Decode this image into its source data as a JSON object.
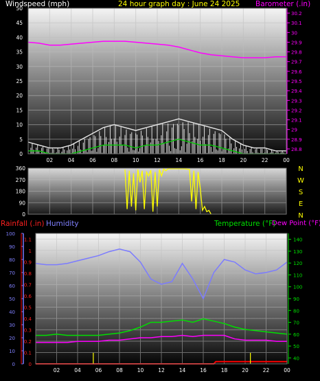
{
  "header": {
    "left": "Windspeed (mph)",
    "center": "24 hour graph day : June 24 2025",
    "right": "Barometer (.in)"
  },
  "colors": {
    "wind": "#ffffff",
    "gust": "#e8e8e8",
    "avg_wind": "#00cc00",
    "barometer": "#ff00ff",
    "direction": "#ffff00",
    "humidity": "#7b7bff",
    "temperature": "#00e000",
    "dewpoint": "#ff00ff",
    "rainfall": "#ff0000",
    "tick": "#ffff00",
    "grid": "#bdbdbd"
  },
  "panel1": {
    "left_ticks": [
      "50",
      "45",
      "40",
      "35",
      "30",
      "25",
      "20",
      "15",
      "10",
      "5",
      "0"
    ],
    "right_ticks": [
      "30.2",
      "30.1",
      "30",
      "29.9",
      "29.8",
      "29.7",
      "29.6",
      "29.5",
      "29.4",
      "29.3",
      "29.2",
      "29.1",
      "29",
      "28.9",
      "28.8"
    ],
    "x_ticks": [
      "02",
      "04",
      "06",
      "08",
      "10",
      "12",
      "14",
      "16",
      "18",
      "20",
      "22",
      "00"
    ]
  },
  "panel2": {
    "left_ticks": [
      "360",
      "270",
      "180",
      "90",
      "0"
    ],
    "compass": [
      "N",
      "W",
      "S",
      "E",
      "N"
    ]
  },
  "panel3": {
    "labels": {
      "rainfall": "Rainfall (.in)",
      "humidity": "Humidity",
      "temperature": "Temperature (°F)",
      "dewpoint": "Dew Point (°F)"
    },
    "humidity_ticks": [
      "100",
      "90",
      "80",
      "70",
      "60",
      "50",
      "40",
      "30",
      "20",
      "10",
      "0"
    ],
    "rain_ticks": [
      "1.1",
      "1",
      "0.9",
      "0.8",
      "0.7",
      "0.6",
      "0.5",
      "0.4",
      "0.3",
      "0.2",
      "0.1",
      "0"
    ],
    "temp_ticks": [
      "140",
      "130",
      "120",
      "110",
      "100",
      "90",
      "80",
      "70",
      "60",
      "50",
      "40"
    ],
    "x_ticks": [
      "02",
      "04",
      "06",
      "08",
      "10",
      "12",
      "14",
      "16",
      "18",
      "20",
      "22",
      "00"
    ]
  },
  "chart_data": [
    {
      "type": "line",
      "title": "24 hour graph day : June 24 2025",
      "ylabel": "Windspeed (mph)",
      "y2label": "Barometer (.in)",
      "ylim": [
        0,
        50
      ],
      "y2lim": [
        28.75,
        30.25
      ],
      "x_unit": "hour",
      "xlim": [
        0,
        24
      ],
      "series": [
        {
          "name": "Barometer (.in)",
          "x": [
            0,
            1,
            2,
            3,
            4,
            5,
            6,
            7,
            8,
            9,
            10,
            11,
            12,
            13,
            14,
            15,
            16,
            17,
            18,
            19,
            20,
            21,
            22,
            23,
            24
          ],
          "values": [
            29.9,
            29.89,
            29.87,
            29.87,
            29.88,
            29.89,
            29.9,
            29.91,
            29.91,
            29.91,
            29.9,
            29.89,
            29.88,
            29.87,
            29.85,
            29.82,
            29.79,
            29.77,
            29.76,
            29.75,
            29.74,
            29.74,
            29.74,
            29.75,
            29.75
          ]
        },
        {
          "name": "Gust",
          "x": [
            0,
            1,
            2,
            3,
            4,
            5,
            6,
            7,
            8,
            9,
            10,
            11,
            12,
            13,
            14,
            15,
            16,
            17,
            18,
            19,
            20,
            21,
            22,
            23,
            24
          ],
          "values": [
            4,
            3,
            2,
            2,
            3,
            5,
            7,
            9,
            10,
            9,
            8,
            9,
            10,
            11,
            12,
            11,
            10,
            9,
            8,
            5,
            3,
            2,
            2,
            1,
            1
          ]
        },
        {
          "name": "Average",
          "x": [
            0,
            1,
            2,
            3,
            4,
            5,
            6,
            7,
            8,
            9,
            10,
            11,
            12,
            13,
            14,
            15,
            16,
            17,
            18,
            19,
            20,
            21,
            22,
            23,
            24
          ],
          "values": [
            1,
            1,
            0,
            0,
            0,
            1,
            2,
            3,
            3,
            3,
            2,
            3,
            3,
            4,
            5,
            4,
            3,
            3,
            2,
            1,
            0,
            0,
            0,
            0,
            0
          ]
        }
      ]
    },
    {
      "type": "line",
      "title": "",
      "ylabel": "",
      "ylim": [
        0,
        360
      ],
      "x_unit": "hour",
      "xlim": [
        0,
        24
      ],
      "series": [
        {
          "name": "",
          "x": [
            9.0,
            9.2,
            9.4,
            9.6,
            9.8,
            10.0,
            10.2,
            10.4,
            10.6,
            10.8,
            11.0,
            11.2,
            11.4,
            11.6,
            11.8,
            12.0,
            12.2,
            12.4,
            12.6,
            12.8,
            13.0,
            13.5,
            14.0,
            14.5,
            15.0,
            15.2,
            15.4,
            15.6,
            15.8,
            16.0,
            16.2,
            16.4,
            16.6,
            16.8,
            17.0
          ],
          "values": [
            350,
            40,
            340,
            60,
            320,
            30,
            350,
            250,
            340,
            40,
            330,
            300,
            345,
            20,
            330,
            60,
            350,
            300,
            355,
            340,
            355,
            355,
            355,
            355,
            350,
            100,
            340,
            40,
            330,
            200,
            30,
            60,
            20,
            30,
            0
          ]
        }
      ]
    },
    {
      "type": "line",
      "title": "",
      "ylabel": "Humidity",
      "y2label": "Temperature (°F)",
      "ylim": [
        0,
        100
      ],
      "y2lim": [
        35,
        145
      ],
      "x_unit": "hour",
      "xlim": [
        0,
        24
      ],
      "series": [
        {
          "name": "Humidity",
          "x": [
            0,
            1,
            2,
            3,
            4,
            5,
            6,
            7,
            8,
            9,
            10,
            11,
            12,
            13,
            14,
            15,
            16,
            17,
            18,
            19,
            20,
            21,
            22,
            23,
            24
          ],
          "values": [
            77,
            76,
            76,
            77,
            79,
            81,
            83,
            86,
            88,
            86,
            78,
            65,
            61,
            63,
            77,
            65,
            50,
            70,
            80,
            78,
            72,
            69,
            70,
            72,
            78
          ]
        },
        {
          "name": "Temperature (°F)",
          "x": [
            0,
            1,
            2,
            3,
            4,
            5,
            6,
            7,
            8,
            9,
            10,
            11,
            12,
            13,
            14,
            15,
            16,
            17,
            18,
            19,
            20,
            21,
            22,
            23,
            24
          ],
          "values": [
            59,
            59,
            60,
            59,
            59,
            59,
            59,
            60,
            61,
            63,
            66,
            70,
            70,
            71,
            72,
            70,
            73,
            71,
            69,
            66,
            64,
            63,
            62,
            61,
            60
          ]
        },
        {
          "name": "Dew Point (°F)",
          "x": [
            0,
            1,
            2,
            3,
            4,
            5,
            6,
            7,
            8,
            9,
            10,
            11,
            12,
            13,
            14,
            15,
            16,
            17,
            18,
            19,
            20,
            21,
            22,
            23,
            24
          ],
          "values": [
            53,
            53,
            53,
            53,
            54,
            54,
            54,
            55,
            55,
            56,
            57,
            57,
            58,
            58,
            59,
            58,
            59,
            59,
            59,
            56,
            55,
            55,
            55,
            54,
            54
          ]
        },
        {
          "name": "Rainfall (.in)",
          "x": [
            0,
            4,
            8,
            12,
            16,
            17,
            17.2,
            18,
            20,
            22,
            24
          ],
          "values": [
            0,
            0,
            0,
            0,
            0,
            0,
            0.02,
            0.02,
            0.02,
            0.02,
            0.02
          ]
        }
      ]
    }
  ]
}
